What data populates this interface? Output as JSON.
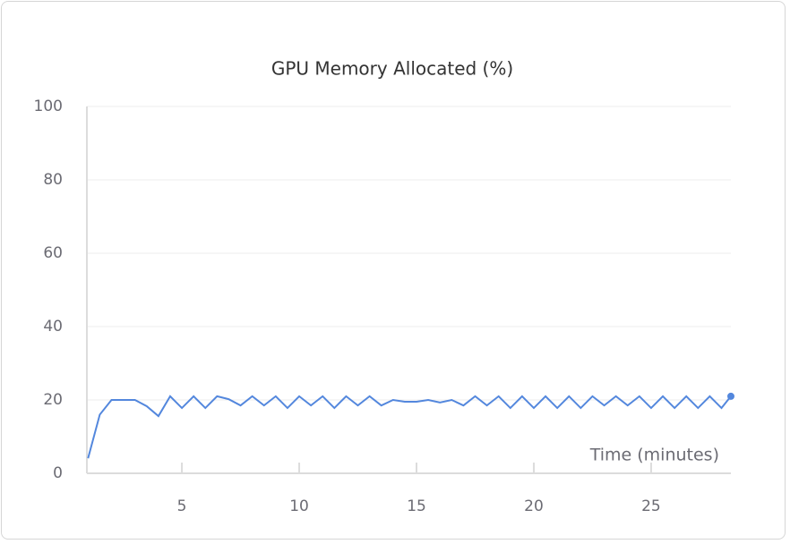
{
  "chart_data": {
    "type": "line",
    "title": "GPU Memory Allocated (%)",
    "x_label": "Time (minutes)",
    "x": [
      1.0,
      1.5,
      2.0,
      2.5,
      3.0,
      3.5,
      4.0,
      4.5,
      5.0,
      5.5,
      6.0,
      6.5,
      7.0,
      7.5,
      8.0,
      8.5,
      9.0,
      9.5,
      10.0,
      10.5,
      11.0,
      11.5,
      12.0,
      12.5,
      13.0,
      13.5,
      14.0,
      14.5,
      15.0,
      15.5,
      16.0,
      16.5,
      17.0,
      17.5,
      18.0,
      18.5,
      19.0,
      19.5,
      20.0,
      20.5,
      21.0,
      21.5,
      22.0,
      22.5,
      23.0,
      23.5,
      24.0,
      24.5,
      25.0,
      25.5,
      26.0,
      26.5,
      27.0,
      27.5,
      28.0,
      28.4
    ],
    "series": [
      {
        "color": "#5387dd",
        "values": [
          4.1,
          16,
          20,
          20,
          20,
          18.3,
          15.6,
          21,
          17.8,
          21,
          17.8,
          21,
          20.2,
          18.5,
          21,
          18.5,
          21,
          17.8,
          21,
          18.5,
          21,
          17.8,
          21,
          18.5,
          21,
          18.5,
          20,
          19.5,
          19.5,
          20,
          19.3,
          20,
          18.5,
          21,
          18.5,
          21,
          17.8,
          21,
          17.8,
          21,
          17.8,
          21,
          17.8,
          21,
          18.5,
          21,
          18.5,
          21,
          17.8,
          21,
          17.8,
          21,
          17.8,
          21,
          17.8,
          21
        ]
      }
    ],
    "xlim": [
      0.95,
      28.4
    ],
    "ylim": [
      0,
      100
    ],
    "xticks": [
      5,
      10,
      15,
      20,
      25
    ],
    "yticks": [
      0,
      20,
      40,
      60,
      80,
      100
    ],
    "grid": true
  }
}
